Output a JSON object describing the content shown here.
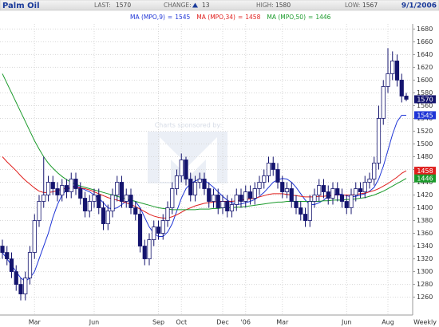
{
  "chart_data": {
    "type": "candlestick",
    "title": "Palm Oil",
    "last_label": "LAST:",
    "change_label": "CHANGE:",
    "change": 13,
    "high_label": "HIGH:",
    "low_label": "LOW:",
    "date": "9/1/2006",
    "frequency": "Weekly",
    "watermark": "Charts sponsored by:",
    "legend_separator": "=",
    "up_color": "#ffffff",
    "down_color": "#14146e",
    "outline_color": "#14146e",
    "grid": true,
    "ylim": [
      1232,
      1688
    ],
    "yticks": [
      1260,
      1280,
      1300,
      1320,
      1340,
      1360,
      1380,
      1400,
      1420,
      1440,
      1460,
      1480,
      1500,
      1520,
      1540,
      1560,
      1580,
      1600,
      1620,
      1640,
      1660,
      1680
    ],
    "categories": [
      null,
      null,
      null,
      null,
      null,
      null,
      null,
      "Mar",
      null,
      null,
      null,
      null,
      null,
      null,
      null,
      null,
      null,
      null,
      null,
      null,
      "Jun",
      null,
      null,
      null,
      null,
      null,
      null,
      null,
      null,
      null,
      null,
      null,
      null,
      null,
      "Sep",
      null,
      null,
      null,
      null,
      "Oct",
      null,
      null,
      null,
      null,
      null,
      null,
      null,
      null,
      "Dec",
      null,
      null,
      null,
      null,
      "'06",
      null,
      null,
      null,
      null,
      null,
      null,
      null,
      "Mar",
      null,
      null,
      null,
      null,
      null,
      null,
      null,
      null,
      null,
      null,
      null,
      null,
      null,
      "Jun",
      null,
      null,
      null,
      null,
      null,
      null,
      null,
      null,
      "Aug",
      null,
      null,
      null,
      null
    ],
    "open": [
      1340,
      1330,
      1320,
      1300,
      1280,
      1265,
      1290,
      1330,
      1380,
      1410,
      1420,
      1440,
      1430,
      1420,
      1435,
      1425,
      1445,
      1430,
      1415,
      1395,
      1410,
      1420,
      1400,
      1375,
      1395,
      1420,
      1440,
      1410,
      1420,
      1400,
      1390,
      1340,
      1320,
      1350,
      1370,
      1360,
      1380,
      1400,
      1430,
      1450,
      1475,
      1445,
      1420,
      1440,
      1445,
      1430,
      1410,
      1420,
      1400,
      1410,
      1395,
      1405,
      1420,
      1410,
      1425,
      1415,
      1430,
      1440,
      1450,
      1470,
      1460,
      1440,
      1425,
      1430,
      1410,
      1400,
      1390,
      1380,
      1410,
      1420,
      1435,
      1425,
      1415,
      1430,
      1420,
      1410,
      1400,
      1420,
      1430,
      1425,
      1440,
      1445,
      1470,
      1540,
      1590,
      1610,
      1630,
      1600,
      1575
    ],
    "high": [
      1350,
      1340,
      1330,
      1310,
      1290,
      1300,
      1340,
      1390,
      1420,
      1480,
      1450,
      1450,
      1440,
      1445,
      1445,
      1455,
      1455,
      1440,
      1425,
      1420,
      1430,
      1430,
      1410,
      1405,
      1430,
      1450,
      1450,
      1430,
      1430,
      1410,
      1400,
      1350,
      1360,
      1380,
      1380,
      1390,
      1410,
      1440,
      1460,
      1485,
      1480,
      1455,
      1450,
      1455,
      1455,
      1440,
      1430,
      1430,
      1420,
      1420,
      1415,
      1430,
      1430,
      1435,
      1435,
      1440,
      1450,
      1460,
      1480,
      1480,
      1470,
      1450,
      1440,
      1440,
      1420,
      1410,
      1400,
      1420,
      1430,
      1445,
      1445,
      1435,
      1440,
      1440,
      1430,
      1420,
      1430,
      1440,
      1440,
      1450,
      1455,
      1480,
      1560,
      1600,
      1650,
      1645,
      1640,
      1610,
      1580
    ],
    "low": [
      1320,
      1310,
      1290,
      1270,
      1255,
      1255,
      1280,
      1320,
      1370,
      1400,
      1410,
      1420,
      1410,
      1410,
      1415,
      1415,
      1420,
      1405,
      1385,
      1385,
      1400,
      1390,
      1365,
      1365,
      1385,
      1410,
      1400,
      1400,
      1390,
      1380,
      1330,
      1310,
      1310,
      1340,
      1350,
      1350,
      1370,
      1390,
      1420,
      1440,
      1435,
      1410,
      1410,
      1430,
      1420,
      1400,
      1400,
      1390,
      1390,
      1385,
      1385,
      1395,
      1400,
      1400,
      1405,
      1405,
      1420,
      1430,
      1440,
      1450,
      1430,
      1415,
      1415,
      1400,
      1390,
      1380,
      1370,
      1370,
      1400,
      1410,
      1415,
      1405,
      1405,
      1410,
      1400,
      1390,
      1390,
      1410,
      1415,
      1415,
      1430,
      1435,
      1460,
      1530,
      1580,
      1600,
      1590,
      1565,
      1567
    ],
    "close": [
      1330,
      1320,
      1300,
      1280,
      1265,
      1290,
      1330,
      1380,
      1410,
      1420,
      1440,
      1430,
      1420,
      1435,
      1425,
      1445,
      1430,
      1415,
      1395,
      1410,
      1420,
      1400,
      1375,
      1395,
      1420,
      1440,
      1410,
      1420,
      1400,
      1390,
      1340,
      1320,
      1350,
      1370,
      1360,
      1380,
      1400,
      1430,
      1450,
      1475,
      1445,
      1420,
      1440,
      1445,
      1430,
      1410,
      1420,
      1400,
      1410,
      1395,
      1405,
      1420,
      1410,
      1425,
      1415,
      1430,
      1440,
      1450,
      1470,
      1460,
      1440,
      1425,
      1430,
      1410,
      1400,
      1390,
      1380,
      1410,
      1420,
      1435,
      1425,
      1415,
      1430,
      1420,
      1410,
      1400,
      1420,
      1430,
      1425,
      1440,
      1445,
      1470,
      1540,
      1590,
      1610,
      1630,
      1600,
      1575,
      1570
    ],
    "series": [
      {
        "name": "MA (MPO,9)",
        "color": "#1f35d6",
        "values": [
          1330,
          1320,
          1310,
          1300,
          1290,
          1285,
          1290,
          1300,
          1320,
          1340,
          1360,
          1385,
          1405,
          1420,
          1428,
          1432,
          1435,
          1432,
          1428,
          1425,
          1420,
          1415,
          1408,
          1400,
          1398,
          1400,
          1405,
          1410,
          1412,
          1410,
          1400,
          1385,
          1370,
          1360,
          1355,
          1355,
          1362,
          1375,
          1395,
          1415,
          1430,
          1438,
          1442,
          1445,
          1443,
          1438,
          1432,
          1425,
          1418,
          1412,
          1408,
          1405,
          1406,
          1408,
          1410,
          1413,
          1418,
          1424,
          1432,
          1440,
          1444,
          1446,
          1445,
          1440,
          1432,
          1422,
          1412,
          1405,
          1405,
          1408,
          1412,
          1418,
          1420,
          1422,
          1421,
          1419,
          1417,
          1418,
          1420,
          1422,
          1426,
          1432,
          1445,
          1465,
          1490,
          1515,
          1535,
          1545,
          1545
        ]
      },
      {
        "name": "MA (MPO,34)",
        "color": "#e0201e",
        "values": [
          1480,
          1472,
          1465,
          1458,
          1450,
          1443,
          1437,
          1431,
          1426,
          1424,
          1424,
          1425,
          1427,
          1429,
          1431,
          1432,
          1432,
          1431,
          1430,
          1428,
          1425,
          1422,
          1419,
          1416,
          1414,
          1412,
          1410,
          1408,
          1405,
          1402,
          1398,
          1394,
          1390,
          1387,
          1385,
          1384,
          1384,
          1386,
          1389,
          1393,
          1397,
          1400,
          1403,
          1405,
          1407,
          1408,
          1409,
          1410,
          1410,
          1410,
          1410,
          1411,
          1412,
          1413,
          1414,
          1415,
          1417,
          1419,
          1421,
          1422,
          1422,
          1422,
          1421,
          1420,
          1419,
          1418,
          1417,
          1417,
          1417,
          1418,
          1418,
          1419,
          1420,
          1420,
          1420,
          1420,
          1420,
          1421,
          1422,
          1423,
          1425,
          1427,
          1430,
          1434,
          1438,
          1443,
          1448,
          1454,
          1458
        ]
      },
      {
        "name": "MA (MPO,50)",
        "color": "#1a9a2a",
        "values": [
          1610,
          1595,
          1580,
          1565,
          1550,
          1535,
          1520,
          1505,
          1492,
          1480,
          1470,
          1462,
          1455,
          1449,
          1444,
          1440,
          1437,
          1434,
          1432,
          1430,
          1428,
          1426,
          1424,
          1422,
          1420,
          1418,
          1416,
          1414,
          1412,
          1410,
          1408,
          1406,
          1404,
          1402,
          1400,
          1399,
          1398,
          1397,
          1397,
          1397,
          1397,
          1397,
          1397,
          1398,
          1398,
          1398,
          1399,
          1399,
          1400,
          1400,
          1400,
          1401,
          1401,
          1402,
          1403,
          1404,
          1405,
          1406,
          1407,
          1408,
          1409,
          1409,
          1410,
          1410,
          1410,
          1410,
          1410,
          1410,
          1410,
          1410,
          1411,
          1411,
          1412,
          1412,
          1412,
          1413,
          1413,
          1414,
          1415,
          1416,
          1418,
          1420,
          1423,
          1426,
          1430,
          1434,
          1438,
          1442,
          1446
        ]
      }
    ]
  }
}
